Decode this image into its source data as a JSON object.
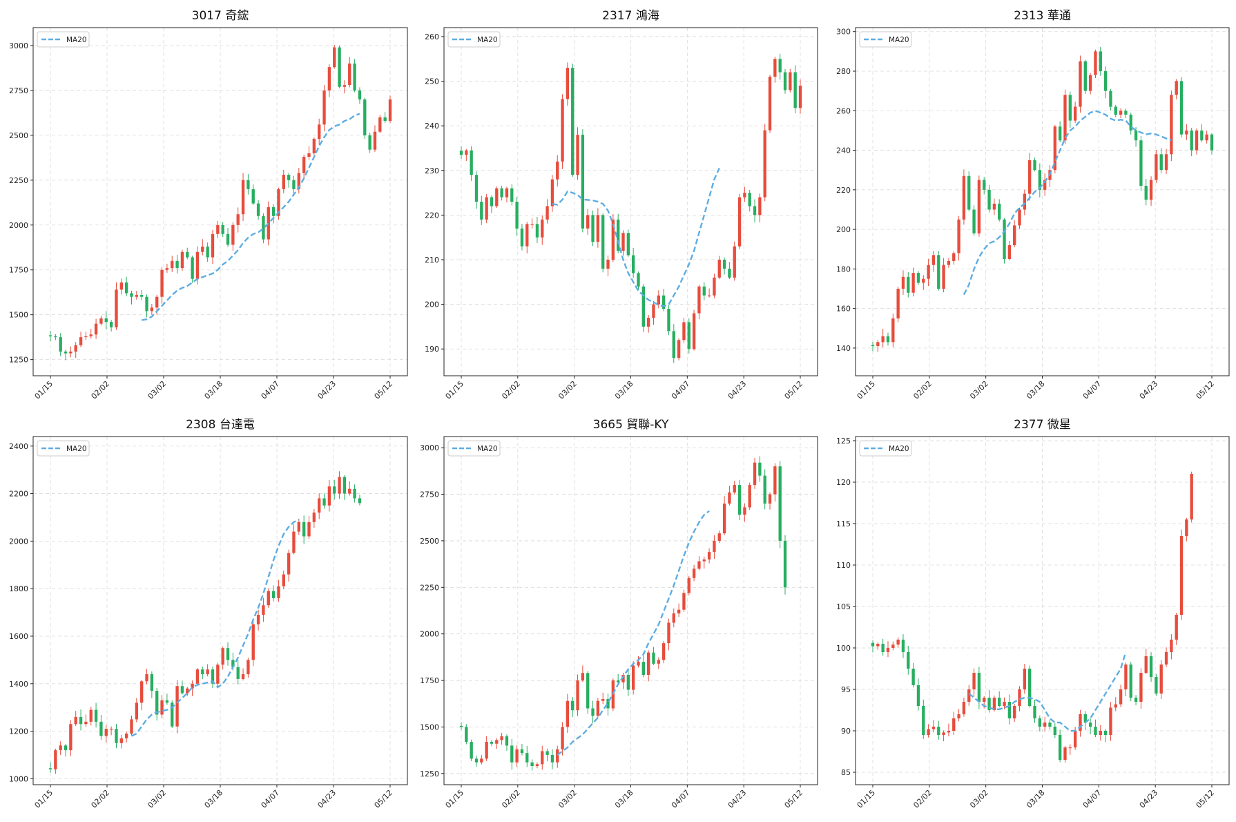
{
  "figure": {
    "up_color": "#e74c3c",
    "down_color": "#27ae60",
    "ma_color": "#5dade2",
    "x_ticks": [
      "01/15",
      "02/02",
      "03/02",
      "03/18",
      "04/07",
      "04/23",
      "05/12"
    ]
  },
  "chart_data": [
    {
      "type": "candlestick",
      "title": "3017 奇鋐",
      "legend": "MA20",
      "legend_position": "top-left",
      "grid": true,
      "ylim": [
        1160,
        3100
      ],
      "yticks": [
        "1250",
        "1500",
        "1750",
        "2000",
        "2250",
        "2500",
        "2750",
        "3000"
      ],
      "closes": [
        1380,
        1375,
        1295,
        1285,
        1295,
        1330,
        1375,
        1380,
        1390,
        1450,
        1480,
        1460,
        1430,
        1640,
        1680,
        1620,
        1600,
        1610,
        1600,
        1520,
        1540,
        1600,
        1750,
        1760,
        1800,
        1760,
        1850,
        1820,
        1700,
        1850,
        1880,
        1820,
        1950,
        2000,
        1950,
        1890,
        2000,
        2060,
        2250,
        2200,
        2120,
        2050,
        1920,
        2100,
        2050,
        2200,
        2280,
        2250,
        2200,
        2290,
        2380,
        2400,
        2480,
        2560,
        2750,
        2880,
        2990,
        2770,
        2780,
        2900,
        2750,
        2700,
        2500,
        2420,
        2520,
        2600,
        2580,
        2700
      ],
      "ma20": [
        null,
        null,
        null,
        null,
        null,
        null,
        null,
        null,
        null,
        null,
        null,
        null,
        null,
        null,
        null,
        null,
        null,
        null,
        1470,
        1475,
        1490,
        1520,
        1550,
        1580,
        1610,
        1635,
        1650,
        1660,
        1680,
        1700,
        1710,
        1720,
        1730,
        1750,
        1780,
        1800,
        1830,
        1860,
        1900,
        1930,
        1950,
        1960,
        1980,
        2010,
        2040,
        2070,
        2100,
        2130,
        2170,
        2210,
        2260,
        2320,
        2380,
        2440,
        2490,
        2530,
        2550,
        2560,
        2580,
        2590,
        2610,
        2620
      ]
    },
    {
      "type": "candlestick",
      "title": "2317 鴻海",
      "legend": "MA20",
      "legend_position": "top-left",
      "grid": true,
      "ylim": [
        184,
        262
      ],
      "yticks": [
        "190",
        "200",
        "210",
        "220",
        "230",
        "240",
        "250",
        "260"
      ],
      "closes": [
        233.5,
        234.5,
        229,
        223,
        219,
        224,
        222,
        226,
        224,
        226,
        223,
        217,
        213,
        218,
        218,
        215,
        219,
        222,
        228,
        232,
        246,
        253,
        229,
        238,
        217,
        220,
        214,
        220,
        208,
        210,
        219,
        212,
        216,
        211,
        207,
        204,
        195,
        197,
        200,
        202,
        199,
        194,
        188,
        192,
        196,
        190,
        198,
        204,
        202,
        202,
        206,
        210,
        208,
        206,
        213,
        224,
        225,
        222,
        220,
        224,
        239,
        251,
        255,
        252,
        248,
        252,
        244,
        249
      ],
      "ma20": [
        null,
        null,
        null,
        null,
        null,
        null,
        null,
        null,
        null,
        null,
        null,
        null,
        null,
        null,
        null,
        null,
        null,
        null,
        222.5,
        222.3,
        223.5,
        225.3,
        225,
        224.5,
        223.5,
        223.4,
        223.3,
        223,
        222.5,
        221,
        218,
        214,
        210,
        207,
        205,
        203,
        202,
        201,
        200.5,
        199.8,
        199.6,
        200,
        202,
        204,
        206.5,
        209,
        212,
        216,
        220,
        224,
        228,
        230.5
      ]
    },
    {
      "type": "candlestick",
      "title": "2313 華通",
      "legend": "MA20",
      "legend_position": "top-left",
      "grid": true,
      "ylim": [
        126,
        302
      ],
      "yticks": [
        "140",
        "160",
        "180",
        "200",
        "220",
        "240",
        "260",
        "280",
        "300"
      ],
      "closes": [
        141,
        143,
        146,
        143,
        155,
        170,
        176,
        168,
        178,
        173,
        175,
        182,
        187,
        170,
        182,
        184,
        188,
        205,
        227,
        210,
        198,
        225,
        220,
        210,
        213,
        205,
        185,
        192,
        202,
        210,
        218,
        235,
        230,
        220,
        225,
        230,
        252,
        245,
        268,
        255,
        262,
        285,
        270,
        278,
        290,
        280,
        270,
        262,
        258,
        260,
        258,
        250,
        245,
        222,
        215,
        225,
        238,
        230,
        238,
        268,
        275,
        248,
        250,
        240,
        250,
        245,
        248,
        240
      ],
      "ma20": [
        null,
        null,
        null,
        null,
        null,
        null,
        null,
        null,
        null,
        null,
        null,
        null,
        null,
        null,
        null,
        null,
        null,
        null,
        167,
        172,
        180,
        186,
        190,
        193,
        194,
        196,
        199,
        203,
        208,
        211,
        213,
        216,
        219,
        221,
        224,
        228,
        234,
        240,
        246,
        250,
        252,
        255,
        257,
        259,
        260,
        259,
        258,
        256,
        255,
        255.5,
        255,
        252,
        250,
        249,
        248,
        248.5,
        248,
        247,
        246,
        245
      ]
    },
    {
      "type": "candlestick",
      "title": "2308 台達電",
      "legend": "MA20",
      "legend_position": "top-left",
      "grid": true,
      "ylim": [
        975,
        2440
      ],
      "yticks": [
        "1000",
        "1200",
        "1400",
        "1600",
        "1800",
        "2000",
        "2200",
        "2400"
      ],
      "closes": [
        1040,
        1120,
        1140,
        1120,
        1230,
        1260,
        1230,
        1240,
        1290,
        1240,
        1180,
        1210,
        1210,
        1150,
        1170,
        1190,
        1250,
        1320,
        1410,
        1440,
        1370,
        1270,
        1330,
        1320,
        1220,
        1390,
        1360,
        1380,
        1400,
        1460,
        1440,
        1460,
        1400,
        1480,
        1550,
        1500,
        1470,
        1420,
        1440,
        1500,
        1650,
        1690,
        1730,
        1790,
        1760,
        1810,
        1860,
        1950,
        2040,
        2080,
        2020,
        2080,
        2120,
        2180,
        2150,
        2230,
        2200,
        2270,
        2200,
        2220,
        2180,
        2160
      ],
      "ma20": [
        null,
        null,
        null,
        null,
        null,
        null,
        null,
        null,
        null,
        null,
        null,
        null,
        null,
        null,
        null,
        null,
        1180,
        1190,
        1220,
        1250,
        1270,
        1280,
        1285,
        1290,
        1300,
        1320,
        1340,
        1360,
        1385,
        1395,
        1400,
        1405,
        1410,
        1385,
        1400,
        1430,
        1470,
        1510,
        1560,
        1610,
        1670,
        1720,
        1780,
        1850,
        1920,
        1980,
        2030,
        2060,
        2080,
        2090
      ]
    },
    {
      "type": "candlestick",
      "title": "3665 貿聯-KY",
      "legend": "MA20",
      "legend_position": "top-left",
      "grid": true,
      "ylim": [
        1190,
        3060
      ],
      "yticks": [
        "1250",
        "1500",
        "1750",
        "2000",
        "2250",
        "2500",
        "2750",
        "3000"
      ],
      "closes": [
        1500,
        1420,
        1330,
        1310,
        1330,
        1420,
        1410,
        1430,
        1450,
        1400,
        1310,
        1380,
        1360,
        1310,
        1290,
        1300,
        1370,
        1350,
        1310,
        1380,
        1500,
        1640,
        1590,
        1750,
        1790,
        1600,
        1560,
        1640,
        1650,
        1600,
        1750,
        1740,
        1780,
        1700,
        1830,
        1850,
        1780,
        1900,
        1840,
        1860,
        1950,
        2060,
        2110,
        2130,
        2220,
        2300,
        2350,
        2390,
        2400,
        2440,
        2500,
        2540,
        2700,
        2760,
        2800,
        2640,
        2680,
        2800,
        2920,
        2850,
        2700,
        2750,
        2900,
        2500,
        2250
      ],
      "ma20": [
        null,
        null,
        null,
        null,
        null,
        null,
        null,
        null,
        null,
        null,
        null,
        null,
        null,
        null,
        null,
        null,
        null,
        null,
        null,
        1350,
        1370,
        1390,
        1420,
        1440,
        1460,
        1490,
        1520,
        1550,
        1590,
        1630,
        1680,
        1730,
        1770,
        1810,
        1840,
        1860,
        1890,
        1950,
        2000,
        2050,
        2120,
        2190,
        2260,
        2340,
        2420,
        2490,
        2550,
        2600,
        2640,
        2660
      ]
    },
    {
      "type": "candlestick",
      "title": "2377 微星",
      "legend": "MA20",
      "legend_position": "top-left",
      "grid": true,
      "ylim": [
        83.5,
        125.5
      ],
      "yticks": [
        "85",
        "90",
        "95",
        "100",
        "105",
        "110",
        "115",
        "120",
        "125"
      ],
      "closes": [
        100.2,
        100.5,
        99.5,
        100,
        100.4,
        101,
        99.5,
        97.5,
        95.5,
        93,
        89.5,
        90.2,
        90.5,
        89.5,
        89.8,
        90,
        91.5,
        92,
        93.5,
        95,
        97,
        93.5,
        94,
        92.5,
        94,
        93,
        93.5,
        91.5,
        93,
        95,
        97.5,
        93,
        91.5,
        90.5,
        91,
        90.5,
        89.5,
        86.5,
        88,
        88,
        90,
        92,
        91,
        90.5,
        89.5,
        90,
        89.5,
        92.8,
        93.2,
        95,
        98,
        94,
        93.5,
        97,
        99,
        96.5,
        94.5,
        98,
        99.5,
        101,
        104,
        113.5,
        115.5,
        121
      ],
      "ma20": [
        null,
        null,
        null,
        null,
        null,
        null,
        null,
        null,
        null,
        null,
        null,
        null,
        null,
        null,
        null,
        null,
        null,
        null,
        null,
        94.5,
        94,
        93.5,
        93,
        92.8,
        92.6,
        92.6,
        92.8,
        93,
        93.5,
        93.8,
        94,
        94,
        93.8,
        93.5,
        92.5,
        91.5,
        91,
        91,
        90.5,
        90,
        90,
        90.5,
        91,
        91.5,
        92.5,
        93.5,
        94.5,
        95.5,
        96.5,
        97.5,
        99.5
      ]
    }
  ]
}
